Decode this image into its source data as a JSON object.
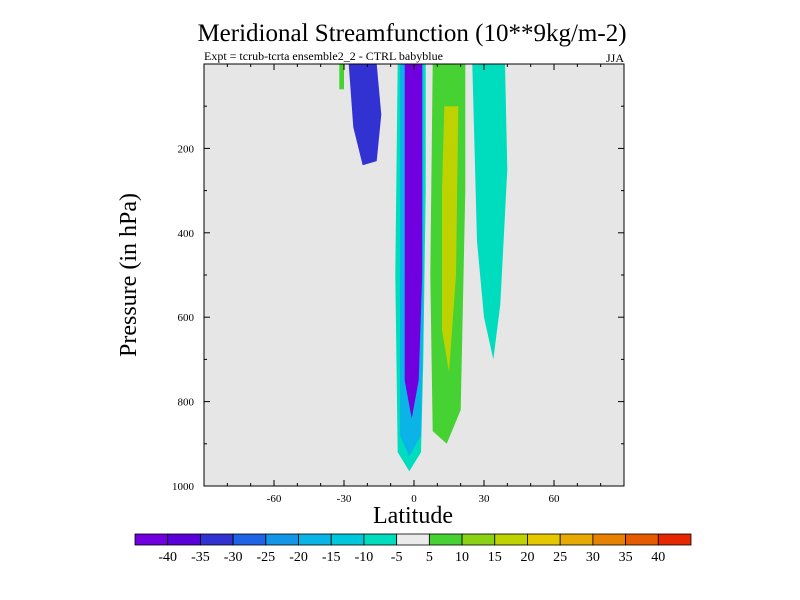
{
  "chart_data": {
    "type": "contour",
    "title": "Meridional Streamfunction (10**9kg/m-2)",
    "subtitle_left": "Expt = tcrub-tcrta   ensemble2_2 - CTRL babyblue",
    "subtitle_right": "JJA",
    "xlabel": "Latitude",
    "ylabel": "Pressure (in hPa)",
    "xlim": [
      -90,
      90
    ],
    "ylim": [
      1000,
      0
    ],
    "x_ticks": [
      -60,
      -30,
      0,
      30,
      60
    ],
    "x_tick_labels": [
      "-60",
      "-30",
      "0",
      "30",
      "60"
    ],
    "y_ticks": [
      200,
      400,
      600,
      800,
      1000
    ],
    "y_tick_labels": [
      "200",
      "400",
      "600",
      "800",
      "1000"
    ],
    "colorbar": {
      "levels": [
        "-40",
        "-35",
        "-30",
        "-25",
        "-20",
        "-15",
        "-10",
        "-5",
        "5",
        "10",
        "15",
        "20",
        "25",
        "30",
        "35",
        "40"
      ],
      "colors": [
        "#7000e0",
        "#5a00d8",
        "#3232d2",
        "#1e64e6",
        "#1496e6",
        "#0ab4e6",
        "#00c8dc",
        "#00dcbe",
        "#ebebeb",
        "#46d232",
        "#8cd214",
        "#bed200",
        "#e6c800",
        "#e6aa00",
        "#e68200",
        "#e65a00",
        "#e62800"
      ]
    },
    "background_color": "#e6e6e6",
    "regions": [
      {
        "name": "neg-cell-tropics-outer",
        "level": "-10 to -5",
        "color": "#00dcbe",
        "lat": [
          -7,
          -2,
          2,
          5,
          5,
          4,
          3,
          -2,
          -7,
          -8,
          -7
        ],
        "p": [
          0,
          0,
          0,
          0,
          300,
          700,
          920,
          965,
          920,
          500,
          0
        ]
      },
      {
        "name": "neg-cell-tropics-mid",
        "level": "-20 to -10",
        "color": "#0ab4e6",
        "lat": [
          -5,
          4,
          4,
          3,
          -2,
          -6,
          -6
        ],
        "p": [
          0,
          0,
          600,
          880,
          930,
          880,
          0
        ]
      },
      {
        "name": "neg-cell-tropics-core",
        "level": "-40 to -30",
        "color": "#7000e0",
        "lat": [
          -4,
          3.5,
          3.5,
          2,
          -1,
          -4,
          -4
        ],
        "p": [
          0,
          0,
          500,
          750,
          840,
          750,
          0
        ]
      },
      {
        "name": "neg-cell-upper",
        "level": "-25",
        "color": "#3232d2",
        "lat": [
          -28,
          -16,
          -14,
          -16,
          -22,
          -26,
          -28
        ],
        "p": [
          0,
          0,
          120,
          230,
          240,
          150,
          0
        ]
      },
      {
        "name": "pos-cell-ne",
        "level": "5 to 10",
        "color": "#46d232",
        "lat": [
          10,
          22,
          22,
          20,
          14,
          8,
          7,
          8
        ],
        "p": [
          0,
          0,
          300,
          820,
          900,
          870,
          500,
          0
        ]
      },
      {
        "name": "pos-cell-core",
        "level": "15 to 20",
        "color": "#bed200",
        "lat": [
          13,
          19,
          18,
          15,
          12,
          12
        ],
        "p": [
          100,
          100,
          500,
          730,
          630,
          300
        ]
      },
      {
        "name": "pos-cell-outer",
        "level": "5",
        "color": "#00dcbe",
        "lat": [
          25,
          39,
          40,
          37,
          34,
          30,
          27,
          25
        ],
        "p": [
          0,
          0,
          250,
          570,
          700,
          600,
          420,
          0
        ]
      },
      {
        "name": "small-green",
        "level": "5",
        "color": "#46d232",
        "lat": [
          -32,
          -30,
          -30,
          -32
        ],
        "p": [
          0,
          0,
          60,
          60
        ]
      }
    ]
  }
}
